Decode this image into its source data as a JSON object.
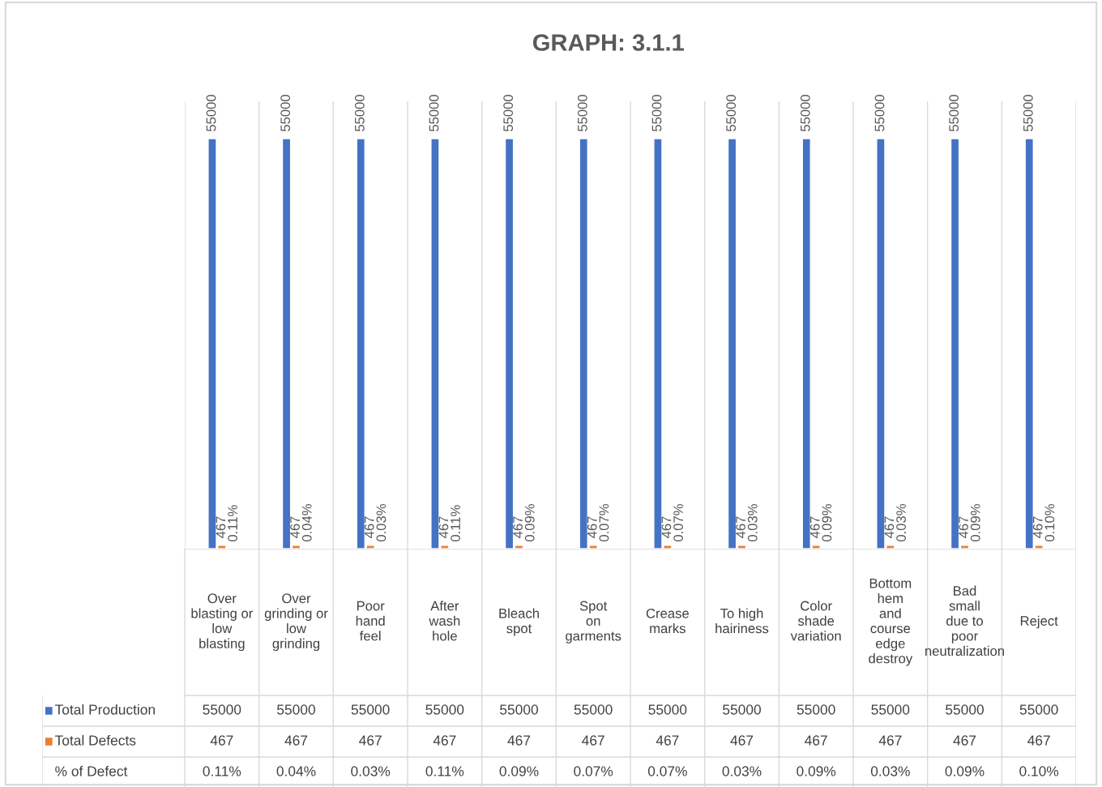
{
  "chart_data": {
    "type": "bar",
    "title": "GRAPH: 3.1.1",
    "categories": [
      "Over\nblasting or\nlow\nblasting",
      "Over\ngrinding or\nlow\ngrinding",
      "Poor\nhand\nfeel",
      "After\nwash\nhole",
      "Bleach\nspot",
      "Spot\non\ngarments",
      "Crease\nmarks",
      "To high\nhairiness",
      "Color\nshade\nvariation",
      "Bottom\nhem\nand\ncourse\nedge\ndestroy",
      "Bad\nsmall\ndue to\npoor\nneutralization",
      "Reject"
    ],
    "series": [
      {
        "name": "Total Production",
        "color": "#4472c4",
        "values": [
          55000,
          55000,
          55000,
          55000,
          55000,
          55000,
          55000,
          55000,
          55000,
          55000,
          55000,
          55000
        ],
        "value_labels": [
          "55000",
          "55000",
          "55000",
          "55000",
          "55000",
          "55000",
          "55000",
          "55000",
          "55000",
          "55000",
          "55000",
          "55000"
        ]
      },
      {
        "name": "Total Defects",
        "color": "#ed7d31",
        "values": [
          467,
          467,
          467,
          467,
          467,
          467,
          467,
          467,
          467,
          467,
          467,
          467
        ],
        "value_labels": [
          "467",
          "467",
          "467",
          "467",
          "467",
          "467",
          "467",
          "467",
          "467",
          "467",
          "467",
          "467"
        ]
      },
      {
        "name": "% of Defect",
        "values": [
          0.11,
          0.04,
          0.03,
          0.11,
          0.09,
          0.07,
          0.07,
          0.03,
          0.09,
          0.03,
          0.09,
          0.1
        ],
        "value_labels": [
          "0.11%",
          "0.04%",
          "0.03%",
          "0.11%",
          "0.09%",
          "0.07%",
          "0.07%",
          "0.03%",
          "0.09%",
          "0.03%",
          "0.09%",
          "0.10%"
        ]
      }
    ],
    "ylim": [
      0,
      60000
    ],
    "tick_labels": "x",
    "grid": "x",
    "legend": "bottom left"
  }
}
